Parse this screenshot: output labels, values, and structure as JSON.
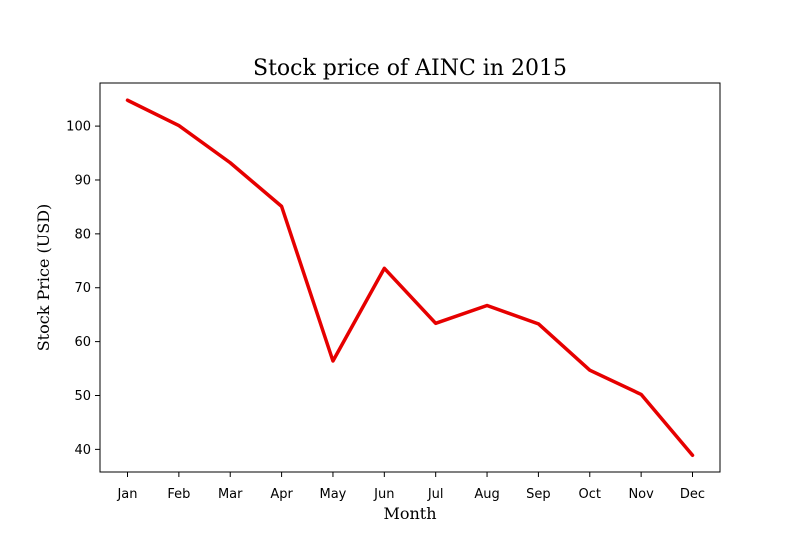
{
  "chart_data": {
    "type": "line",
    "title": "Stock price of AINC in 2015",
    "xlabel": "Month",
    "ylabel": "Stock Price (USD)",
    "categories": [
      "Jan",
      "Feb",
      "Mar",
      "Apr",
      "May",
      "Jun",
      "Jul",
      "Aug",
      "Sep",
      "Oct",
      "Nov",
      "Dec"
    ],
    "series": [
      {
        "values": [
          104.8,
          100.1,
          93.2,
          85.1,
          56.4,
          73.6,
          63.4,
          66.7,
          63.3,
          54.7,
          50.2,
          38.9
        ]
      }
    ],
    "yticks": [
      40,
      50,
      60,
      70,
      80,
      90,
      100
    ],
    "ylim": [
      35.8,
      108.0
    ],
    "grid": false,
    "line_color": "#e60000"
  }
}
